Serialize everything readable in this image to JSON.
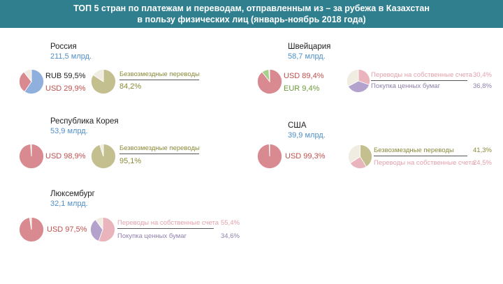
{
  "title_line1": "ТОП 5 стран по платежам и переводам, отправленным из – за рубежа в Казахстан",
  "title_line2": "в пользу физических лиц (январь-ноябрь 2018 года)",
  "colors": {
    "header_bg": "#2f7f8f",
    "rub": "#8fb0dc",
    "usd": "#d98a90",
    "eur": "#a8d08d",
    "gift": "#c4bf8e",
    "own": "#e9b4bc",
    "securities": "#b3a2cc",
    "rest": "#f1ece2",
    "amount_text": "#4f8fc8"
  },
  "countries": {
    "russia": {
      "name": "Россия",
      "amount": "211,5 млрд.",
      "cur1_label": "RUB 59,5%",
      "cur2_label": "USD 29,9%",
      "cat1_label": "Безвозмездные переводы",
      "cat1_pct": "84,2%"
    },
    "swiss": {
      "name": "Швейцария",
      "amount": "58,7 млрд.",
      "cur1_label": "USD 89,4%",
      "cur2_label": "EUR  9,4%",
      "cat1_label": "Переводы на собственные счета",
      "cat1_pct": "30,4%",
      "cat2_label": "Покупка ценных бумаг",
      "cat2_pct": "36,8%"
    },
    "korea": {
      "name": "Республика Корея",
      "amount": "53,9 млрд.",
      "cur1_label": "USD 98,9%",
      "cat1_label": "Безвозмездные переводы",
      "cat1_pct": "95,1%"
    },
    "usa": {
      "name": "США",
      "amount": "39,9 млрд.",
      "cur1_label": "USD 99,3%",
      "cat1_label": "Безвозмездные переводы",
      "cat1_pct": "41,3%",
      "cat2_label": "Переводы на собственные счета",
      "cat2_pct": "24,5%"
    },
    "lux": {
      "name": "Люксембург",
      "amount": "32,1 млрд.",
      "cur1_label": "USD 97,5%",
      "cat1_label": "Переводы на собственные счета",
      "cat1_pct": "55,4%",
      "cat2_label": "Покупка ценных бумаг",
      "cat2_pct": "34,6%"
    }
  },
  "chart_data": [
    {
      "type": "pie",
      "id": "russia-currency",
      "labels": [
        "RUB",
        "USD"
      ],
      "values": [
        59.5,
        29.9
      ],
      "colors": [
        "#8fb0dc",
        "#d98a90"
      ]
    },
    {
      "type": "pie",
      "id": "russia-purpose",
      "labels": [
        "Безвозмездные переводы"
      ],
      "values": [
        84.2
      ],
      "colors": [
        "#c4bf8e"
      ]
    },
    {
      "type": "pie",
      "id": "swiss-currency",
      "labels": [
        "USD",
        "EUR"
      ],
      "values": [
        89.4,
        9.4
      ],
      "colors": [
        "#d98a90",
        "#a8d08d"
      ]
    },
    {
      "type": "pie",
      "id": "swiss-purpose",
      "labels": [
        "Переводы на собственные счета",
        "Покупка ценных бумаг"
      ],
      "values": [
        30.4,
        36.8
      ],
      "colors": [
        "#e9b4bc",
        "#b3a2cc"
      ]
    },
    {
      "type": "pie",
      "id": "korea-currency",
      "labels": [
        "USD"
      ],
      "values": [
        98.9
      ],
      "colors": [
        "#d98a90"
      ]
    },
    {
      "type": "pie",
      "id": "korea-purpose",
      "labels": [
        "Безвозмездные переводы"
      ],
      "values": [
        95.1
      ],
      "colors": [
        "#c4bf8e"
      ]
    },
    {
      "type": "pie",
      "id": "usa-currency",
      "labels": [
        "USD"
      ],
      "values": [
        99.3
      ],
      "colors": [
        "#d98a90"
      ]
    },
    {
      "type": "pie",
      "id": "usa-purpose",
      "labels": [
        "Безвозмездные переводы",
        "Переводы на собственные счета"
      ],
      "values": [
        41.3,
        24.5
      ],
      "colors": [
        "#c4bf8e",
        "#e9b4bc"
      ]
    },
    {
      "type": "pie",
      "id": "lux-currency",
      "labels": [
        "USD"
      ],
      "values": [
        97.5
      ],
      "colors": [
        "#d98a90"
      ]
    },
    {
      "type": "pie",
      "id": "lux-purpose",
      "labels": [
        "Переводы на собственные счета",
        "Покупка ценных бумаг"
      ],
      "values": [
        55.4,
        34.6
      ],
      "colors": [
        "#e9b4bc",
        "#b3a2cc"
      ]
    }
  ]
}
